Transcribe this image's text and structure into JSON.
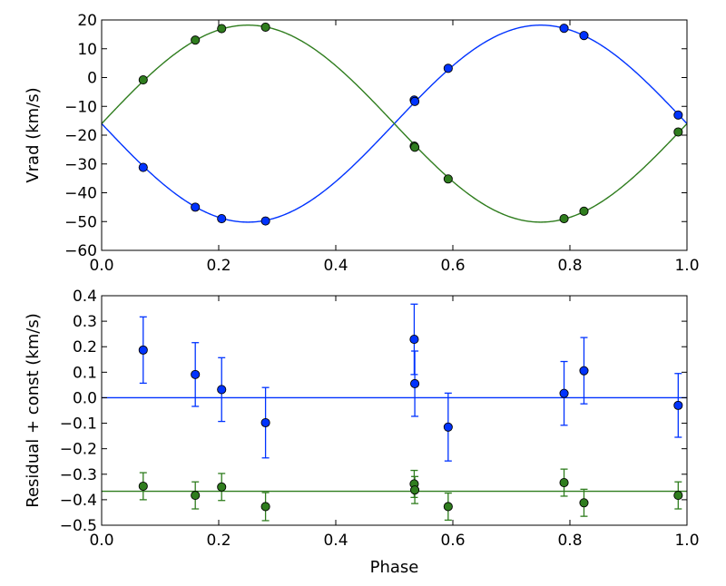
{
  "chart_data": [
    {
      "type": "line",
      "title": "",
      "xlabel": "",
      "ylabel": "Vrad (km/s)",
      "xlim": [
        0.0,
        1.0
      ],
      "ylim": [
        -60,
        20
      ],
      "grid": false,
      "xticks": [
        0.0,
        0.2,
        0.4,
        0.6,
        0.8,
        1.0
      ],
      "xtick_labels": [
        "0.0",
        "0.2",
        "0.4",
        "0.6",
        "0.8",
        "1.0"
      ],
      "yticks": [
        -60,
        -50,
        -40,
        -30,
        -20,
        -10,
        0,
        10,
        20
      ],
      "ytick_labels": [
        "−60",
        "−50",
        "−40",
        "−30",
        "−20",
        "−10",
        "0",
        "10",
        "20"
      ],
      "curves": [
        {
          "color": "#0033ff",
          "gamma": -16.0,
          "amplitude": -34.2
        },
        {
          "color": "#2f7d1e",
          "gamma": -16.0,
          "amplitude": 34.2
        }
      ],
      "series": [
        {
          "color": "#0033ff",
          "x": [
            0.071,
            0.16,
            0.205,
            0.28,
            0.534,
            0.535,
            0.592,
            0.79,
            0.824,
            0.985
          ],
          "y": [
            -31.2,
            -45.0,
            -49.0,
            -49.8,
            -7.8,
            -8.3,
            3.2,
            17.1,
            14.6,
            -13.0
          ]
        },
        {
          "color": "#2f7d1e",
          "x": [
            0.071,
            0.16,
            0.205,
            0.28,
            0.534,
            0.535,
            0.592,
            0.79,
            0.824,
            0.985
          ],
          "y": [
            -0.8,
            13.0,
            17.0,
            17.5,
            -23.8,
            -24.2,
            -35.2,
            -49.0,
            -46.4,
            -18.9
          ]
        }
      ]
    },
    {
      "type": "scatter",
      "title": "",
      "xlabel": "Phase",
      "ylabel": "Residual + const (km/s)",
      "xlim": [
        0.0,
        1.0
      ],
      "ylim": [
        -0.5,
        0.4
      ],
      "grid": false,
      "xticks": [
        0.0,
        0.2,
        0.4,
        0.6,
        0.8,
        1.0
      ],
      "xtick_labels": [
        "0.0",
        "0.2",
        "0.4",
        "0.6",
        "0.8",
        "1.0"
      ],
      "yticks": [
        -0.5,
        -0.4,
        -0.3,
        -0.2,
        -0.1,
        0.0,
        0.1,
        0.2,
        0.3,
        0.4
      ],
      "ytick_labels": [
        "−0.5",
        "−0.4",
        "−0.3",
        "−0.2",
        "−0.1",
        "0.0",
        "0.1",
        "0.2",
        "0.3",
        "0.4"
      ],
      "hlines": [
        {
          "y": 0.0,
          "color": "#0033ff"
        },
        {
          "y": -0.367,
          "color": "#2f7d1e"
        }
      ],
      "series": [
        {
          "color": "#0033ff",
          "x": [
            0.071,
            0.16,
            0.205,
            0.28,
            0.534,
            0.535,
            0.592,
            0.79,
            0.824,
            0.985
          ],
          "y": [
            0.187,
            0.091,
            0.032,
            -0.098,
            0.229,
            0.055,
            -0.115,
            0.017,
            0.106,
            -0.03
          ],
          "err": [
            0.13,
            0.125,
            0.125,
            0.138,
            0.138,
            0.128,
            0.133,
            0.125,
            0.13,
            0.125
          ]
        },
        {
          "color": "#2f7d1e",
          "x": [
            0.071,
            0.16,
            0.205,
            0.28,
            0.534,
            0.535,
            0.592,
            0.79,
            0.824,
            0.985
          ],
          "y": [
            -0.347,
            -0.383,
            -0.35,
            -0.427,
            -0.338,
            -0.362,
            -0.427,
            -0.333,
            -0.412,
            -0.383
          ],
          "err": [
            0.053,
            0.053,
            0.053,
            0.055,
            0.053,
            0.053,
            0.053,
            0.053,
            0.053,
            0.053
          ]
        }
      ]
    }
  ]
}
